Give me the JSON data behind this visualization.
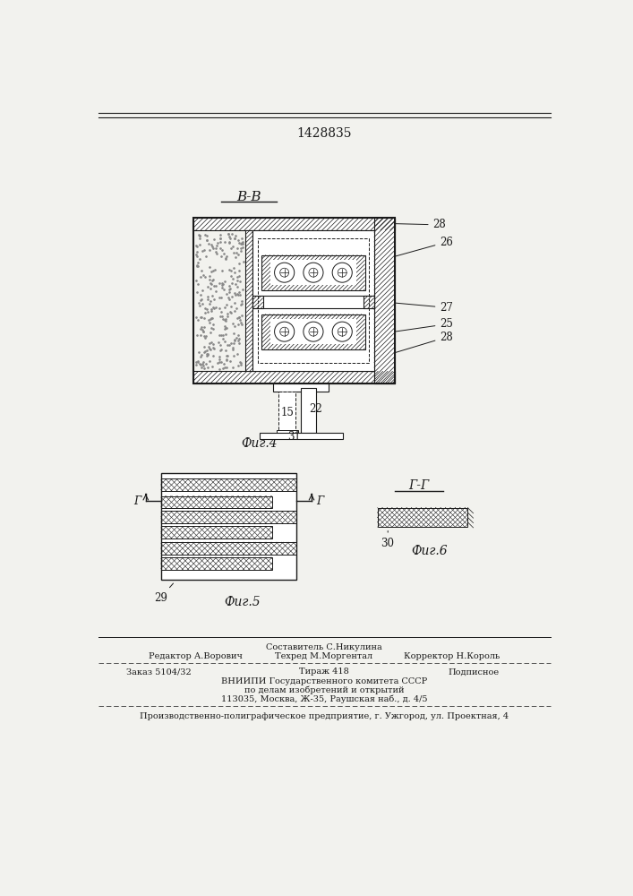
{
  "patent_number": "1428835",
  "bg_color": "#f2f2ee",
  "line_color": "#1a1a1a",
  "fig4_label": "В-В",
  "fig4_caption": "Фиг.4",
  "fig5_caption": "Фиг.5",
  "fig6_caption": "Фиг.6",
  "fig6_section": "Г-Г"
}
